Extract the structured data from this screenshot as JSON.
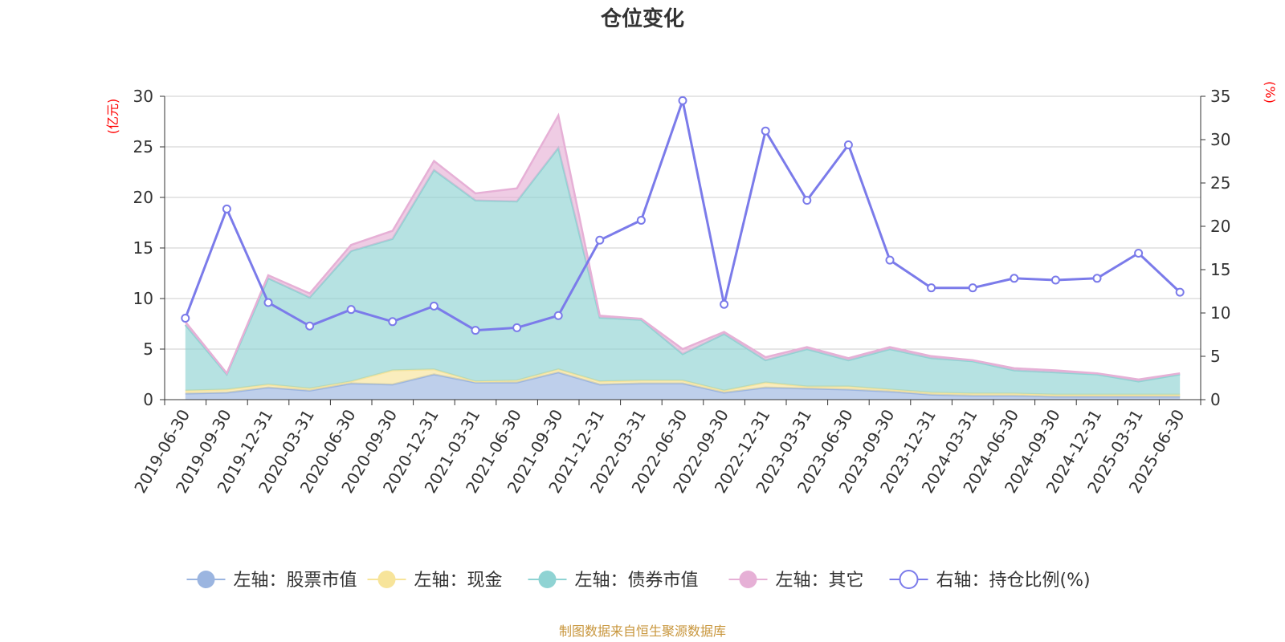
{
  "chart_data": {
    "type": "area",
    "title": "仓位变化",
    "left_axis_unit": "(亿元)",
    "right_axis_unit": "(%)",
    "left_ylim": [
      0,
      30
    ],
    "left_ticks": [
      0,
      5,
      10,
      15,
      20,
      25,
      30
    ],
    "right_ylim": [
      0,
      35
    ],
    "right_ticks": [
      0,
      5,
      10,
      15,
      20,
      25,
      30,
      35
    ],
    "grid": true,
    "legend_position": "bottom",
    "categories": [
      "2019-06-30",
      "2019-09-30",
      "2019-12-31",
      "2020-03-31",
      "2020-06-30",
      "2020-09-30",
      "2020-12-31",
      "2021-03-31",
      "2021-06-30",
      "2021-09-30",
      "2021-12-31",
      "2022-03-31",
      "2022-06-30",
      "2022-09-30",
      "2022-12-31",
      "2023-03-31",
      "2023-06-30",
      "2023-09-30",
      "2023-12-31",
      "2024-03-31",
      "2024-06-30",
      "2024-09-30",
      "2024-12-31",
      "2025-03-31",
      "2025-06-30"
    ],
    "series": [
      {
        "name": "左轴：股票市值",
        "axis": "left",
        "kind": "stacked-area",
        "color": "#9bb5e0",
        "values": [
          0.6,
          0.7,
          1.2,
          0.9,
          1.6,
          1.5,
          2.5,
          1.7,
          1.7,
          2.7,
          1.5,
          1.6,
          1.6,
          0.7,
          1.2,
          1.1,
          1.0,
          0.8,
          0.5,
          0.4,
          0.4,
          0.3,
          0.3,
          0.3,
          0.3
        ]
      },
      {
        "name": "左轴：现金",
        "axis": "left",
        "kind": "stacked-area",
        "color": "#f7e49a",
        "values": [
          0.3,
          0.3,
          0.3,
          0.2,
          0.2,
          1.4,
          0.5,
          0.1,
          0.2,
          0.3,
          0.3,
          0.3,
          0.3,
          0.2,
          0.5,
          0.2,
          0.3,
          0.2,
          0.2,
          0.2,
          0.2,
          0.2,
          0.2,
          0.2,
          0.2
        ]
      },
      {
        "name": "左轴：债券市值",
        "axis": "left",
        "kind": "stacked-area",
        "color": "#8fd3d3",
        "values": [
          6.5,
          1.5,
          10.5,
          9.0,
          12.9,
          13.0,
          19.7,
          17.9,
          17.7,
          21.9,
          6.3,
          6.0,
          2.6,
          5.6,
          2.2,
          3.7,
          2.6,
          4.0,
          3.4,
          3.2,
          2.3,
          2.2,
          2.0,
          1.3,
          2.0
        ]
      },
      {
        "name": "左轴：其它",
        "axis": "left",
        "kind": "stacked-area",
        "color": "#e6b0d6",
        "values": [
          0.3,
          0.1,
          0.3,
          0.4,
          0.6,
          0.8,
          0.9,
          0.7,
          1.3,
          3.2,
          0.2,
          0.1,
          0.5,
          0.2,
          0.3,
          0.2,
          0.2,
          0.2,
          0.2,
          0.1,
          0.2,
          0.2,
          0.1,
          0.2,
          0.1
        ]
      },
      {
        "name": "右轴：持仓比例(%)",
        "axis": "right",
        "kind": "line",
        "color": "#7b7bea",
        "values": [
          9.4,
          22.0,
          11.2,
          8.5,
          10.4,
          9.0,
          10.8,
          8.0,
          8.3,
          9.7,
          18.4,
          20.7,
          34.5,
          11.0,
          31.0,
          23.0,
          29.4,
          16.1,
          12.9,
          12.9,
          14.0,
          13.8,
          14.0,
          16.9,
          12.4
        ]
      }
    ],
    "source_note": "制图数据来自恒生聚源数据库"
  }
}
